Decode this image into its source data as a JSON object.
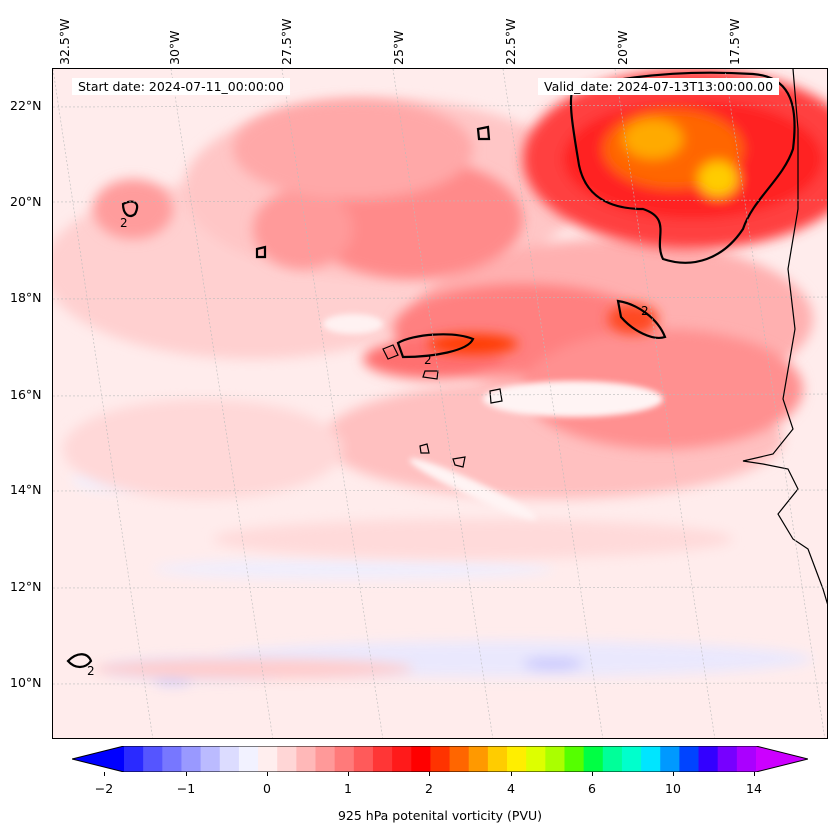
{
  "map": {
    "start_date": "Start date: 2024-07-11_00:00:00",
    "valid_date": "Valid_date: 2024-07-13T13:00:00.00",
    "contour_label": "2",
    "lon_labels": [
      "32.5°W",
      "30°W",
      "27.5°W",
      "25°W",
      "22.5°W",
      "20°W",
      "17.5°W"
    ],
    "lat_labels": [
      "22°N",
      "20°N",
      "18°N",
      "16°N",
      "14°N",
      "12°N",
      "10°N"
    ],
    "features": [
      "potential-vorticity-field",
      "cape-verde-islands",
      "west-africa-coastline"
    ]
  },
  "colorbar": {
    "title": "925 hPa potenital vorticity (PVU)",
    "ticks": [
      "−2",
      "−1",
      "0",
      "1",
      "2",
      "4",
      "6",
      "10",
      "14"
    ],
    "colors": [
      "#0000ff",
      "#2a2aff",
      "#5555ff",
      "#7777ff",
      "#9999ff",
      "#bbbbff",
      "#dcdcff",
      "#f2f2ff",
      "#ffeeee",
      "#ffd6d6",
      "#ffb8b8",
      "#ff9999",
      "#ff7a7a",
      "#ff5a5a",
      "#ff3636",
      "#ff1a1a",
      "#ff0000",
      "#ff3300",
      "#ff6600",
      "#ff9900",
      "#ffcc00",
      "#ffee00",
      "#ddff00",
      "#aaff00",
      "#55ff00",
      "#00ff44",
      "#00ff99",
      "#00ffcc",
      "#00e5ff",
      "#0099ff",
      "#0044ff",
      "#3300ff",
      "#7700ff",
      "#aa00ff",
      "#cc00ff"
    ]
  }
}
